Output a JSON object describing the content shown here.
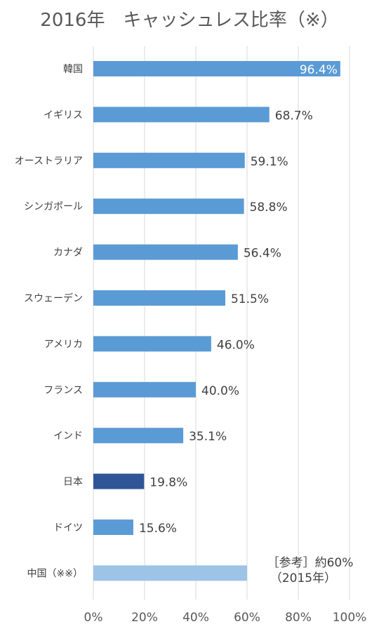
{
  "chart_data": {
    "type": "bar",
    "orientation": "horizontal",
    "title": "2016年　キャッシュレス比率（※）",
    "categories": [
      "韓国",
      "イギリス",
      "オーストラリア",
      "シンガポール",
      "カナダ",
      "スウェーデン",
      "アメリカ",
      "フランス",
      "インド",
      "日本",
      "ドイツ",
      "中国（※※）"
    ],
    "values": [
      96.4,
      68.7,
      59.1,
      58.8,
      56.4,
      51.5,
      46.0,
      40.0,
      35.1,
      19.8,
      15.6,
      60
    ],
    "value_labels": [
      "96.4%",
      "68.7%",
      "59.1%",
      "58.8%",
      "56.4%",
      "51.5%",
      "46.0%",
      "40.0%",
      "35.1%",
      "19.8%",
      "15.6%",
      ""
    ],
    "bar_colors": [
      "#5b9bd5",
      "#5b9bd5",
      "#5b9bd5",
      "#5b9bd5",
      "#5b9bd5",
      "#5b9bd5",
      "#5b9bd5",
      "#5b9bd5",
      "#5b9bd5",
      "#2f5597",
      "#5b9bd5",
      "#9dc3e6"
    ],
    "xlim": [
      0,
      100
    ],
    "x_ticks": [
      "0%",
      "20%",
      "40%",
      "60%",
      "80%",
      "100%"
    ],
    "grid": true,
    "annotation": {
      "line1": "［参考］約60%",
      "line2": "（2015年）"
    }
  }
}
